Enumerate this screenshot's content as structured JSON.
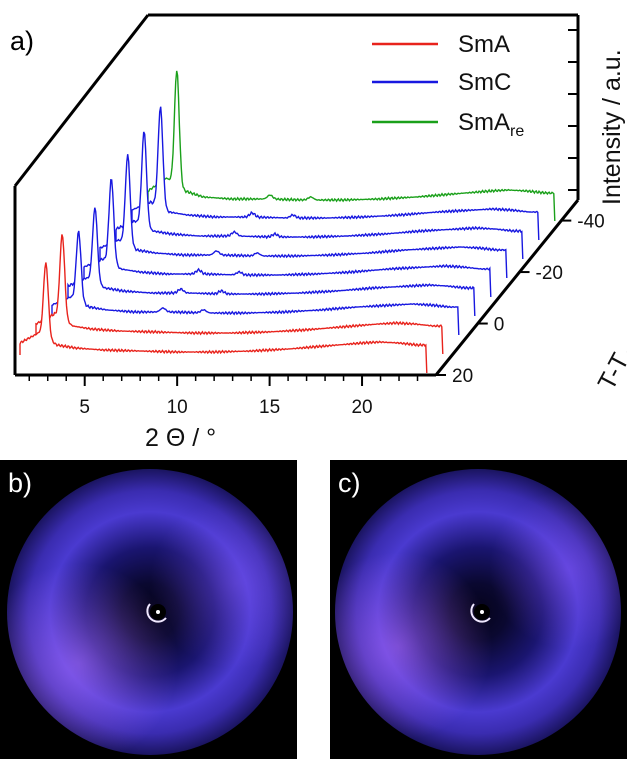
{
  "panels": {
    "a": "a)",
    "b": "b)",
    "c": "c)"
  },
  "chart_data": {
    "type": "line",
    "subtype": "stacked-3d-waterfall",
    "title": "",
    "xlabel": "2 Θ / °",
    "ylabel": "Intensity / a.u.",
    "zlabel": "T-T_AC / K",
    "xlim": [
      1.5,
      24
    ],
    "xticks": [
      5,
      10,
      15,
      20
    ],
    "zticks": [
      -40,
      -20,
      0,
      20
    ],
    "legend": {
      "position": "top-right",
      "entries": [
        {
          "label": "SmA",
          "color": "#e8231c"
        },
        {
          "label": "SmC",
          "color": "#1818e0"
        },
        {
          "label": "SmA",
          "subscript": "re",
          "color": "#1aa01a"
        }
      ]
    },
    "x_samples": [
      1.5,
      2.5,
      3.5,
      4.5,
      6,
      8,
      10,
      12,
      14,
      16,
      18,
      20,
      21,
      22,
      23
    ],
    "peak_2theta": 2.9,
    "series": [
      {
        "phase": "SmA",
        "color": "#e8231c",
        "peak": 75,
        "values": [
          12,
          22,
          10,
          7,
          5,
          4,
          3,
          3,
          4,
          6,
          9,
          12,
          13,
          12,
          10
        ]
      },
      {
        "phase": "SmA",
        "color": "#e8231c",
        "peak": 85,
        "values": [
          12,
          22,
          10,
          7,
          5,
          4,
          3,
          3,
          4,
          6,
          9,
          12,
          13,
          12,
          10
        ]
      },
      {
        "phase": "SmC",
        "color": "#1818e0",
        "peak": 70,
        "values": [
          12,
          20,
          10,
          7,
          5,
          5,
          4,
          4,
          5,
          7,
          10,
          12,
          13,
          12,
          10
        ]
      },
      {
        "phase": "SmC",
        "color": "#1818e0",
        "peak": 75,
        "values": [
          12,
          20,
          10,
          7,
          5,
          5,
          4,
          4,
          5,
          7,
          10,
          12,
          13,
          12,
          10
        ]
      },
      {
        "phase": "SmC",
        "color": "#1818e0",
        "peak": 85,
        "values": [
          12,
          20,
          10,
          7,
          5,
          5,
          4,
          4,
          5,
          7,
          10,
          12,
          13,
          12,
          10
        ]
      },
      {
        "phase": "SmC",
        "color": "#1818e0",
        "peak": 90,
        "values": [
          12,
          20,
          10,
          7,
          5,
          5,
          4,
          4,
          5,
          7,
          10,
          12,
          13,
          12,
          10
        ]
      },
      {
        "phase": "SmC",
        "color": "#1818e0",
        "peak": 95,
        "values": [
          12,
          20,
          10,
          7,
          5,
          5,
          4,
          4,
          5,
          7,
          10,
          12,
          13,
          12,
          10
        ]
      },
      {
        "phase": "SmC",
        "color": "#1818e0",
        "peak": 100,
        "values": [
          12,
          20,
          10,
          7,
          5,
          5,
          4,
          4,
          5,
          7,
          10,
          12,
          13,
          12,
          10
        ]
      },
      {
        "phase": "SmA_re",
        "color": "#1aa01a",
        "peak": 115,
        "values": [
          12,
          25,
          12,
          6,
          4,
          4,
          3,
          3,
          4,
          6,
          9,
          12,
          13,
          12,
          10
        ]
      }
    ]
  },
  "images": [
    {
      "panel": "b",
      "type": "2D-WAXS-pattern",
      "ring_color": "#6a3cf0",
      "bright_side": "lower-left"
    },
    {
      "panel": "c",
      "type": "2D-WAXS-pattern",
      "ring_color": "#6a3cf0",
      "bright_side": "lower-left"
    }
  ]
}
